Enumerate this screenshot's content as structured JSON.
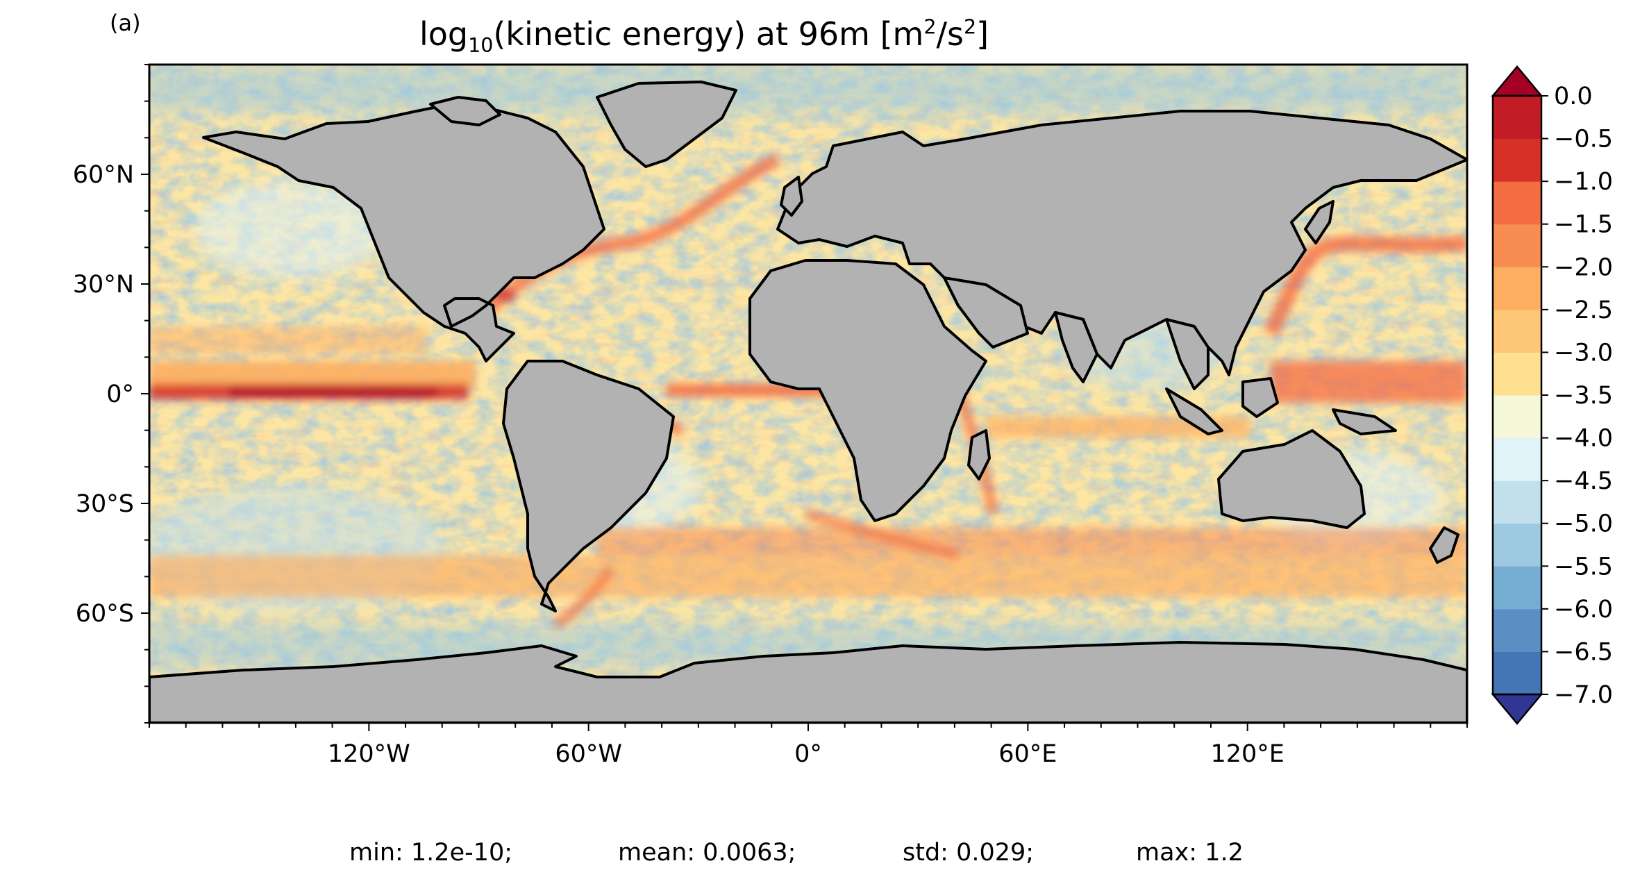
{
  "panel_label": "(a)",
  "title": {
    "prefix": "log",
    "sub": "10",
    "middle": "(kinetic energy) at 96m [m",
    "sup1": "2",
    "slash": "/s",
    "sup2": "2",
    "suffix": "]"
  },
  "map": {
    "projection": "plate-carree",
    "lon_range": [
      -180,
      180
    ],
    "lat_range": [
      -90,
      90
    ],
    "x_ticks": [
      {
        "lon": -120,
        "label": "120°W"
      },
      {
        "lon": -60,
        "label": "60°W"
      },
      {
        "lon": 0,
        "label": "0°"
      },
      {
        "lon": 60,
        "label": "60°E"
      },
      {
        "lon": 120,
        "label": "120°E"
      }
    ],
    "y_ticks": [
      {
        "lat": 60,
        "label": "60°N"
      },
      {
        "lat": 30,
        "label": "30°N"
      },
      {
        "lat": 0,
        "label": "0°"
      },
      {
        "lat": -30,
        "label": "30°S"
      },
      {
        "lat": -60,
        "label": "60°S"
      }
    ],
    "land_color": "#b2b2b2",
    "coast_color": "#000000"
  },
  "colorbar": {
    "colormap": "RdYlBu_r",
    "extend": "both",
    "levels": [
      -7.0,
      -6.5,
      -6.0,
      -5.5,
      -5.0,
      -4.5,
      -4.0,
      -3.5,
      -3.0,
      -2.5,
      -2.0,
      -1.5,
      -1.0,
      -0.5,
      0.0
    ],
    "labels": [
      "−7.0",
      "−6.5",
      "−6.0",
      "−5.5",
      "−5.0",
      "−4.5",
      "−4.0",
      "−3.5",
      "−3.0",
      "−2.5",
      "−2.0",
      "−1.5",
      "−1.0",
      "−0.5",
      "0.0"
    ],
    "colors": [
      "#313695",
      "#4575b4",
      "#5b8ec2",
      "#74add1",
      "#9ecae1",
      "#c2e0ec",
      "#e0f3f8",
      "#f5f9d9",
      "#fee090",
      "#fdc777",
      "#fdae61",
      "#f88d52",
      "#f46d43",
      "#d73027",
      "#c21d27",
      "#a50026"
    ]
  },
  "stats": {
    "min": "min: 1.2e-10;",
    "mean": "mean: 0.0063;",
    "std": "std: 0.029;",
    "max": "max: 1.2"
  }
}
